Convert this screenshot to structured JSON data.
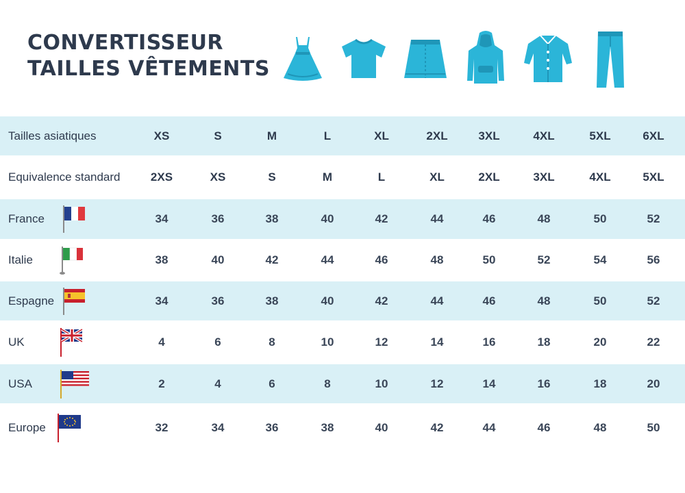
{
  "title": {
    "line1": "CONVERTISSEUR",
    "line2": "TAILLES VÊTEMENTS"
  },
  "accent_color": "#2bb5d8",
  "band_color": "#d9f0f6",
  "text_color": "#2e3a4d",
  "icons": [
    "dress-icon",
    "tshirt-icon",
    "skirt-icon",
    "hoodie-icon",
    "shirt-dress-icon",
    "jeans-icon"
  ],
  "table": {
    "rows": [
      {
        "label": "Tailles asiatiques",
        "flag": null,
        "values": [
          "XS",
          "S",
          "M",
          "L",
          "XL",
          "2XL",
          "3XL",
          "4XL",
          "5XL",
          "6XL"
        ]
      },
      {
        "label": "Equivalence standard",
        "flag": null,
        "values": [
          "2XS",
          "XS",
          "S",
          "M",
          "L",
          "XL",
          "2XL",
          "3XL",
          "4XL",
          "5XL"
        ]
      },
      {
        "label": "France",
        "flag": "france-flag-icon",
        "values": [
          "34",
          "36",
          "38",
          "40",
          "42",
          "44",
          "46",
          "48",
          "50",
          "52"
        ]
      },
      {
        "label": "Italie",
        "flag": "italy-flag-icon",
        "values": [
          "38",
          "40",
          "42",
          "44",
          "46",
          "48",
          "50",
          "52",
          "54",
          "56"
        ]
      },
      {
        "label": "Espagne",
        "flag": "spain-flag-icon",
        "values": [
          "34",
          "36",
          "38",
          "40",
          "42",
          "44",
          "46",
          "48",
          "50",
          "52"
        ]
      },
      {
        "label": "UK",
        "flag": "uk-flag-icon",
        "values": [
          "4",
          "6",
          "8",
          "10",
          "12",
          "14",
          "16",
          "18",
          "20",
          "22"
        ]
      },
      {
        "label": "USA",
        "flag": "usa-flag-icon",
        "values": [
          "2",
          "4",
          "6",
          "8",
          "10",
          "12",
          "14",
          "16",
          "18",
          "20"
        ]
      },
      {
        "label": "Europe",
        "flag": "eu-flag-icon",
        "values": [
          "32",
          "34",
          "36",
          "38",
          "40",
          "42",
          "44",
          "46",
          "48",
          "50"
        ]
      }
    ]
  }
}
